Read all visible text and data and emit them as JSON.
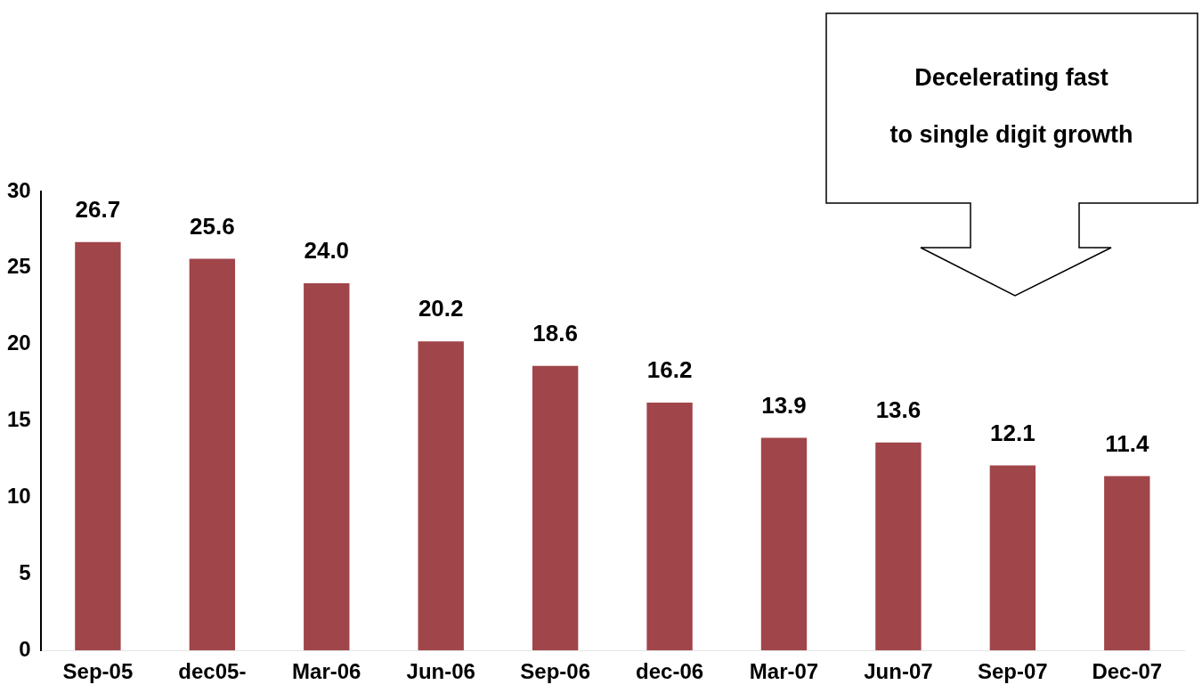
{
  "chart_data": {
    "type": "bar",
    "categories": [
      "Sep-05",
      "dec05-",
      "Mar-06",
      "Jun-06",
      "Sep-06",
      "dec-06",
      "Mar-07",
      "Jun-07",
      "Sep-07",
      "Dec-07"
    ],
    "values": [
      26.7,
      25.6,
      24.0,
      20.2,
      18.6,
      16.2,
      13.9,
      13.6,
      12.1,
      11.4
    ],
    "value_labels": [
      "26.7",
      "25.6",
      "24.0",
      "20.2",
      "18.6",
      "16.2",
      "13.9",
      "13.6",
      "12.1",
      "11.4"
    ],
    "color": "#a0454a",
    "ylim": [
      0,
      30
    ],
    "yticks": [
      0,
      5,
      10,
      15,
      20,
      25,
      30
    ],
    "grid": false,
    "legend": false,
    "annotations": [
      "Decelerating fast\nto single digit growth"
    ]
  }
}
